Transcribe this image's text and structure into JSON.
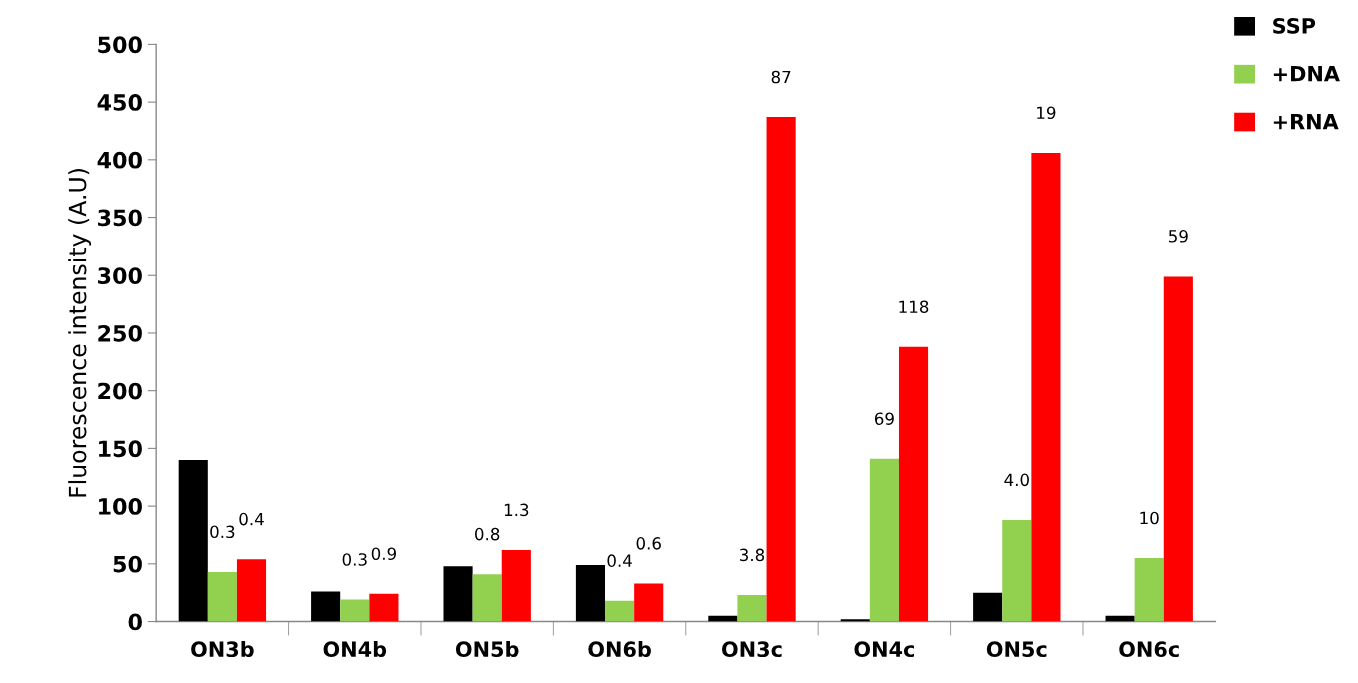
{
  "chart_data": {
    "type": "bar",
    "ylabel": "Fluorescence intensity (A.U)",
    "categories": [
      "ON3b",
      "ON4b",
      "ON5b",
      "ON6b",
      "ON3c",
      "ON4c",
      "ON5c",
      "ON6c"
    ],
    "series": [
      {
        "name": "SSP",
        "color": "#000000",
        "values": [
          140,
          26,
          48,
          49,
          5,
          2,
          25,
          5
        ]
      },
      {
        "name": "+DNA",
        "color": "#92d050",
        "values": [
          43,
          19,
          41,
          18,
          23,
          141,
          88,
          55
        ]
      },
      {
        "name": "+RNA",
        "color": "#ff0000",
        "values": [
          54,
          24,
          62,
          33,
          437,
          238,
          406,
          299
        ]
      }
    ],
    "annotations": [
      "0.3",
      "0.4",
      "0.3",
      "0.9",
      "0.8",
      "1.3",
      "0.4",
      "0.6",
      "3.8",
      "87",
      "69",
      "118",
      "4.0",
      "19",
      "10",
      "59"
    ],
    "ylim": [
      0,
      500
    ],
    "yticks": [
      0,
      50,
      100,
      150,
      200,
      250,
      300,
      350,
      400,
      450,
      500
    ],
    "grid": false,
    "legend": "top right"
  }
}
